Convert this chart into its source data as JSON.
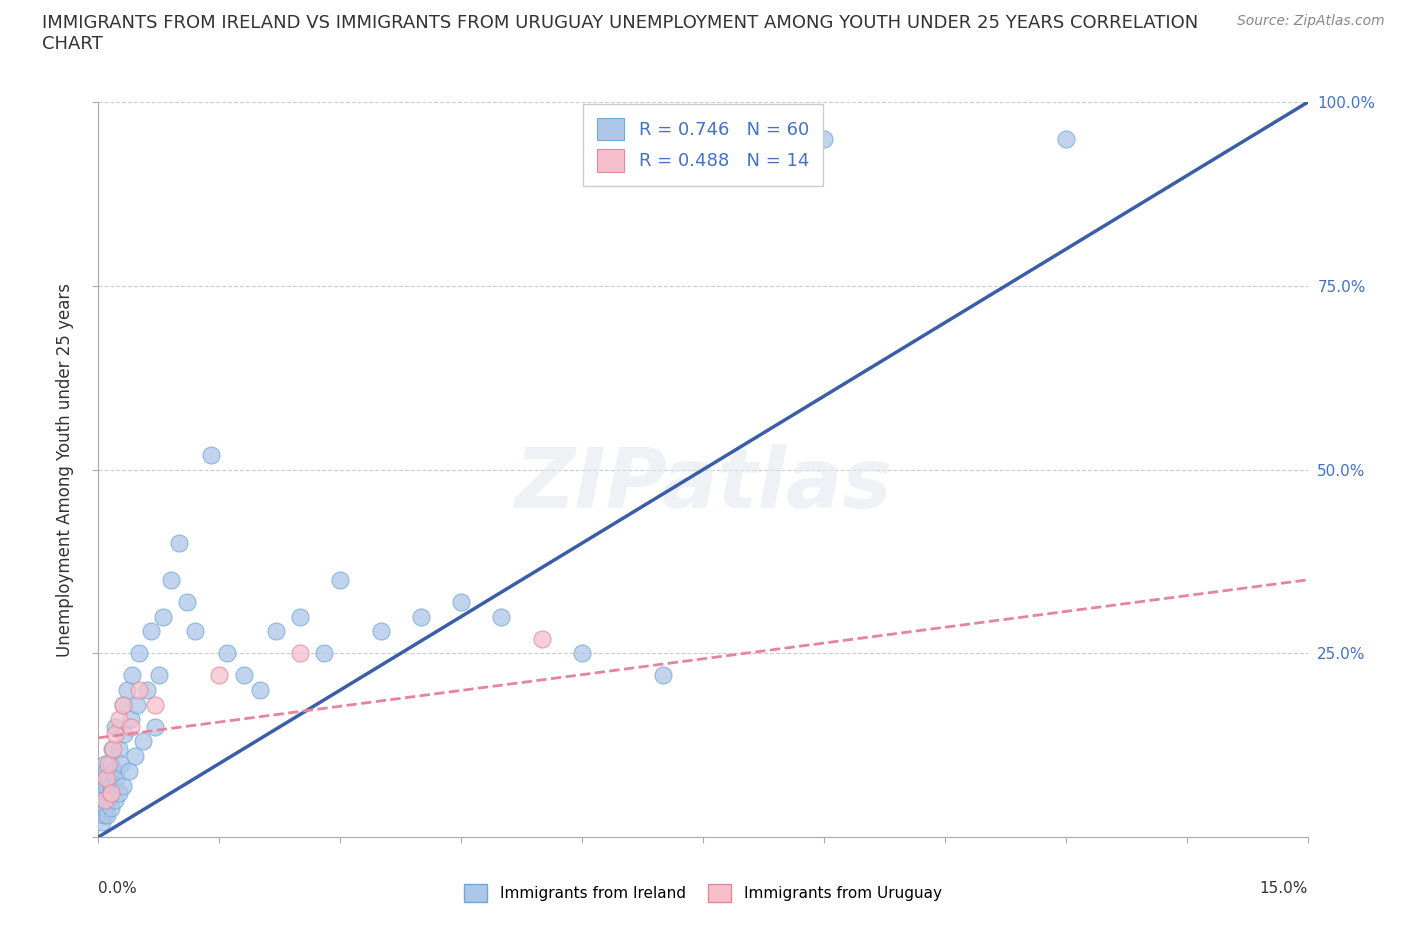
{
  "title_line1": "IMMIGRANTS FROM IRELAND VS IMMIGRANTS FROM URUGUAY UNEMPLOYMENT AMONG YOUTH UNDER 25 YEARS CORRELATION",
  "title_line2": "CHART",
  "source_text": "Source: ZipAtlas.com",
  "watermark": "ZIPatlas",
  "ylabel": "Unemployment Among Youth under 25 years",
  "xmin": 0.0,
  "xmax": 15.0,
  "ymin": 0.0,
  "ymax": 100.0,
  "ireland_color": "#aec6e8",
  "ireland_edge_color": "#6fa8d6",
  "uruguay_color": "#f5c0cb",
  "uruguay_edge_color": "#e8849a",
  "ireland_R": 0.746,
  "ireland_N": 60,
  "uruguay_R": 0.488,
  "uruguay_N": 14,
  "ireland_line_color": "#3a5fa8",
  "uruguay_line_color": "#e8849a",
  "legend_label_ireland": "Immigrants from Ireland",
  "legend_label_uruguay": "Immigrants from Uruguay",
  "legend_text_color": "#4472c4",
  "right_tick_color": "#4472c4",
  "ireland_line_x": [
    0,
    15
  ],
  "ireland_line_y": [
    0,
    100
  ],
  "uruguay_line_x": [
    0,
    15
  ],
  "uruguay_line_y": [
    13.5,
    35
  ],
  "ireland_x": [
    0.05,
    0.05,
    0.05,
    0.07,
    0.08,
    0.08,
    0.09,
    0.1,
    0.1,
    0.11,
    0.12,
    0.13,
    0.14,
    0.15,
    0.15,
    0.16,
    0.17,
    0.18,
    0.2,
    0.2,
    0.22,
    0.25,
    0.25,
    0.28,
    0.3,
    0.3,
    0.32,
    0.35,
    0.38,
    0.4,
    0.42,
    0.45,
    0.48,
    0.5,
    0.55,
    0.6,
    0.65,
    0.7,
    0.75,
    0.8,
    0.9,
    1.0,
    1.1,
    1.2,
    1.4,
    1.6,
    1.8,
    2.0,
    2.2,
    2.5,
    2.8,
    3.0,
    3.5,
    4.0,
    4.5,
    5.0,
    6.0,
    7.0,
    9.0,
    12.0
  ],
  "ireland_y": [
    2,
    5,
    8,
    3,
    6,
    10,
    4,
    7,
    9,
    3,
    5,
    8,
    6,
    4,
    10,
    7,
    12,
    9,
    5,
    15,
    8,
    12,
    6,
    10,
    18,
    7,
    14,
    20,
    9,
    16,
    22,
    11,
    18,
    25,
    13,
    20,
    28,
    15,
    22,
    30,
    35,
    40,
    32,
    28,
    52,
    25,
    22,
    20,
    28,
    30,
    25,
    35,
    28,
    30,
    32,
    30,
    25,
    22,
    95,
    95
  ],
  "uruguay_x": [
    0.08,
    0.1,
    0.12,
    0.15,
    0.18,
    0.2,
    0.25,
    0.3,
    0.4,
    0.5,
    0.7,
    1.5,
    2.5,
    5.5
  ],
  "uruguay_y": [
    5,
    8,
    10,
    6,
    12,
    14,
    16,
    18,
    15,
    20,
    18,
    22,
    25,
    27
  ]
}
